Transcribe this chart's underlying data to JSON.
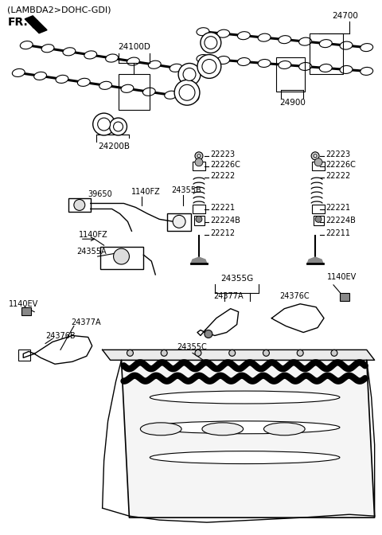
{
  "background_color": "#ffffff",
  "fig_width": 4.8,
  "fig_height": 6.72,
  "dpi": 100,
  "header": "(LAMBDA2>DOHC-GDI)",
  "fr_label": "FR.",
  "parts": {
    "24100D": "24100D",
    "24200B": "24200B",
    "24700": "24700",
    "24900": "24900",
    "39650": "39650",
    "1140FZ_a": "1140FZ",
    "1140FZ_b": "1140FZ",
    "24355B": "24355B",
    "24355A": "24355A",
    "22223_L": "22223",
    "22226C_L": "22226C",
    "22222_L": "22222",
    "22221_L": "22221",
    "22224B_L": "22224B",
    "22212": "22212",
    "22223_R": "22223",
    "22226C_R": "22226C",
    "22222_R": "22222",
    "22221_R": "22221",
    "22224B_R": "22224B",
    "22211": "22211",
    "24355G": "24355G",
    "1140EV_a": "1140EV",
    "1140EV_b": "1140EV",
    "24377A_a": "24377A",
    "24377A_b": "24377A",
    "24376B": "24376B",
    "24376C": "24376C",
    "24355C": "24355C"
  }
}
